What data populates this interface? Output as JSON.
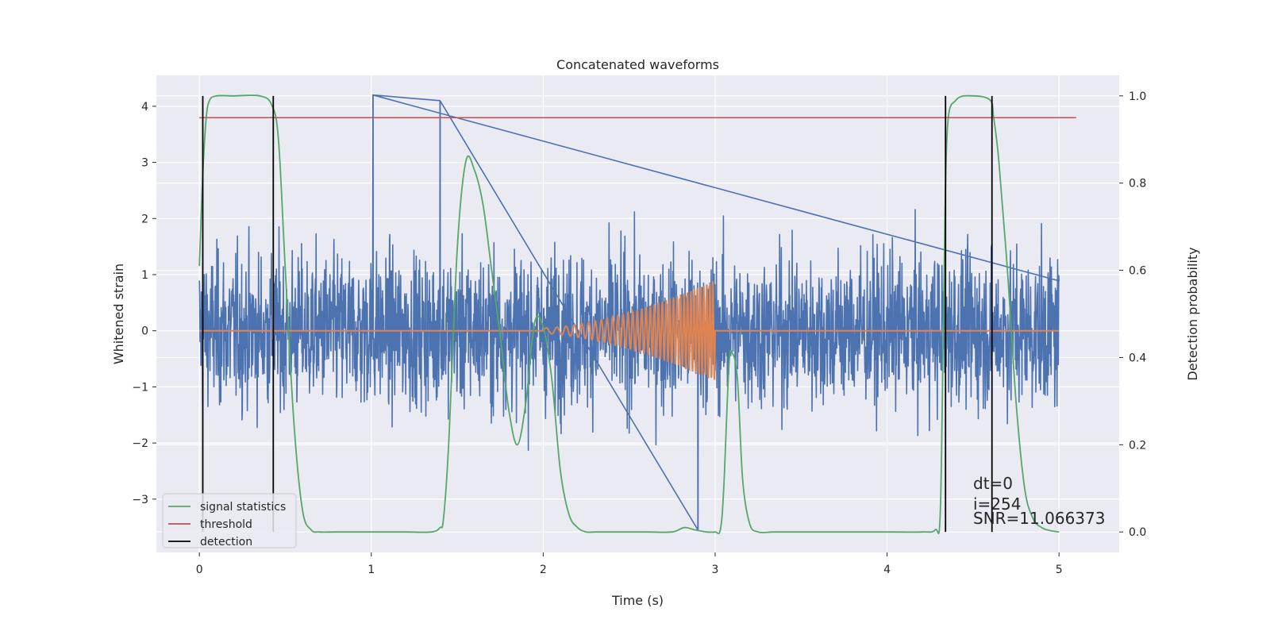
{
  "chart_data": {
    "type": "line",
    "title": "Concatenated waveforms",
    "xlabel": "Time (s)",
    "ylabel": "Whitened strain",
    "y2label": "Detection probability",
    "xlim": [
      -0.25,
      5.35
    ],
    "ylim": [
      -3.95,
      4.55
    ],
    "y2lim": [
      -0.047,
      1.047
    ],
    "xticks": [
      "0",
      "1",
      "2",
      "3",
      "4",
      "5"
    ],
    "yticks": [
      "−3",
      "−2",
      "−1",
      "0",
      "1",
      "2",
      "3",
      "4"
    ],
    "y2ticks": [
      "0.0",
      "0.2",
      "0.4",
      "0.6",
      "0.8",
      "1.0"
    ],
    "grid": true,
    "legend_position": "lower-left",
    "colors": {
      "strain": "#4c72b0",
      "waveform": "#dd8452",
      "signal_statistics": "#55a868",
      "threshold": "#c44e52",
      "detection": "#000000",
      "plot_bg": "#eaeaf2",
      "grid": "#ffffff"
    },
    "series": [
      {
        "name": "signal statistics",
        "axis": "right",
        "x": [
          0.0,
          0.02,
          0.04,
          0.06,
          0.1,
          0.2,
          0.35,
          0.42,
          0.46,
          0.5,
          0.55,
          0.6,
          0.65,
          0.7,
          0.8,
          1.0,
          1.2,
          1.35,
          1.4,
          1.42,
          1.45,
          1.5,
          1.55,
          1.6,
          1.65,
          1.7,
          1.75,
          1.8,
          1.85,
          1.9,
          1.95,
          2.0,
          2.05,
          2.1,
          2.15,
          2.2,
          2.25,
          2.3,
          2.4,
          2.6,
          2.75,
          2.82,
          2.88,
          2.95,
          3.0,
          3.03,
          3.05,
          3.08,
          3.1,
          3.13,
          3.16,
          3.2,
          3.25,
          3.35,
          3.6,
          4.0,
          4.2,
          4.28,
          4.31,
          4.33,
          4.35,
          4.4,
          4.5,
          4.6,
          4.62,
          4.65,
          4.7,
          4.75,
          4.8,
          4.85,
          4.9,
          4.95,
          5.0
        ],
        "values": [
          0.61,
          0.82,
          0.95,
          0.99,
          1.0,
          1.0,
          1.0,
          0.98,
          0.9,
          0.6,
          0.25,
          0.05,
          0.005,
          0.0,
          0.0,
          0.0,
          0.0,
          0.0,
          0.01,
          0.03,
          0.2,
          0.65,
          0.85,
          0.83,
          0.75,
          0.6,
          0.45,
          0.28,
          0.2,
          0.3,
          0.48,
          0.47,
          0.35,
          0.14,
          0.04,
          0.01,
          0.0,
          0.0,
          0.0,
          0.0,
          0.0,
          0.01,
          0.005,
          0.0,
          0.0,
          0.005,
          0.1,
          0.38,
          0.41,
          0.35,
          0.12,
          0.02,
          0.0,
          0.0,
          0.0,
          0.0,
          0.0,
          0.005,
          0.05,
          0.55,
          0.92,
          0.99,
          1.0,
          0.99,
          0.95,
          0.85,
          0.6,
          0.3,
          0.1,
          0.03,
          0.01,
          0.003,
          0.0
        ]
      },
      {
        "name": "threshold",
        "axis": "right",
        "x": [
          0.0,
          5.1
        ],
        "values": [
          0.95,
          0.95
        ]
      },
      {
        "name": "detection",
        "axis": "right",
        "x_positions": [
          0.02,
          0.43,
          4.34,
          4.61
        ],
        "range": [
          0.0,
          1.0
        ]
      },
      {
        "axis": "left",
        "x_range": [
          0.0,
          5.0
        ],
        "amplitude_envelope": [
          -3.6,
          4.2
        ],
        "note_visible_peaks": [
          [
            1.01,
            4.2
          ],
          [
            1.4,
            4.1
          ],
          [
            2.9,
            -3.55
          ]
        ]
      },
      {
        "axis": "left",
        "x_range": [
          0.0,
          3.0
        ],
        "chirp_start": 2.0,
        "chirp_end": 3.0,
        "peak_amplitude": 0.9
      }
    ],
    "legend": [
      "signal statistics",
      "threshold",
      "detection"
    ],
    "annotations": [
      "dt=0",
      "i=254",
      "SNR=11.066373"
    ]
  }
}
